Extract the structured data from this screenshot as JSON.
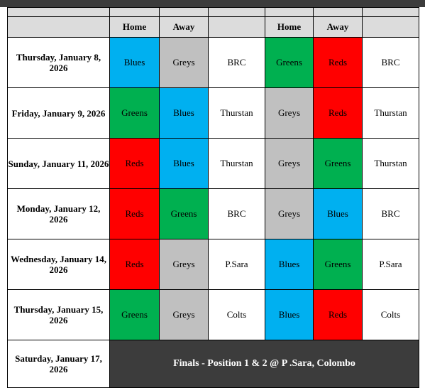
{
  "header": {
    "home": "Home",
    "away": "Away"
  },
  "colors": {
    "Blues": "#00b0f0",
    "Greys": "#c0c0c0",
    "Greens": "#00b050",
    "Reds": "#ff0000",
    "Final": "#3c3c3c"
  },
  "days": [
    {
      "date": "Thursday, January 8, 2026",
      "game1": {
        "home": "Blues",
        "away": "Greys",
        "venue": "BRC"
      },
      "game2": {
        "home": "Greens",
        "away": "Reds",
        "venue": "BRC"
      }
    },
    {
      "date": "Friday, January 9, 2026",
      "game1": {
        "home": "Greens",
        "away": "Blues",
        "venue": "Thurstan"
      },
      "game2": {
        "home": "Greys",
        "away": "Reds",
        "venue": "Thurstan"
      }
    },
    {
      "date": "Sunday, January 11, 2026",
      "game1": {
        "home": "Reds",
        "away": "Blues",
        "venue": "Thurstan"
      },
      "game2": {
        "home": "Greys",
        "away": "Greens",
        "venue": "Thurstan"
      }
    },
    {
      "date": "Monday, January 12, 2026",
      "game1": {
        "home": "Reds",
        "away": "Greens",
        "venue": "BRC"
      },
      "game2": {
        "home": "Greys",
        "away": "Blues",
        "venue": "BRC"
      }
    },
    {
      "date": "Wednesday, January 14, 2026",
      "game1": {
        "home": "Reds",
        "away": "Greys",
        "venue": "P.Sara"
      },
      "game2": {
        "home": "Blues",
        "away": "Greens",
        "venue": "P.Sara"
      }
    },
    {
      "date": "Thursday, January 15, 2026",
      "game1": {
        "home": "Greens",
        "away": "Greys",
        "venue": "Colts"
      },
      "game2": {
        "home": "Blues",
        "away": "Reds",
        "venue": "Colts"
      }
    }
  ],
  "final": {
    "date": "Saturday, January 17, 2026",
    "text": "Finals - Position 1 & 2 @ P .Sara, Colombo"
  }
}
